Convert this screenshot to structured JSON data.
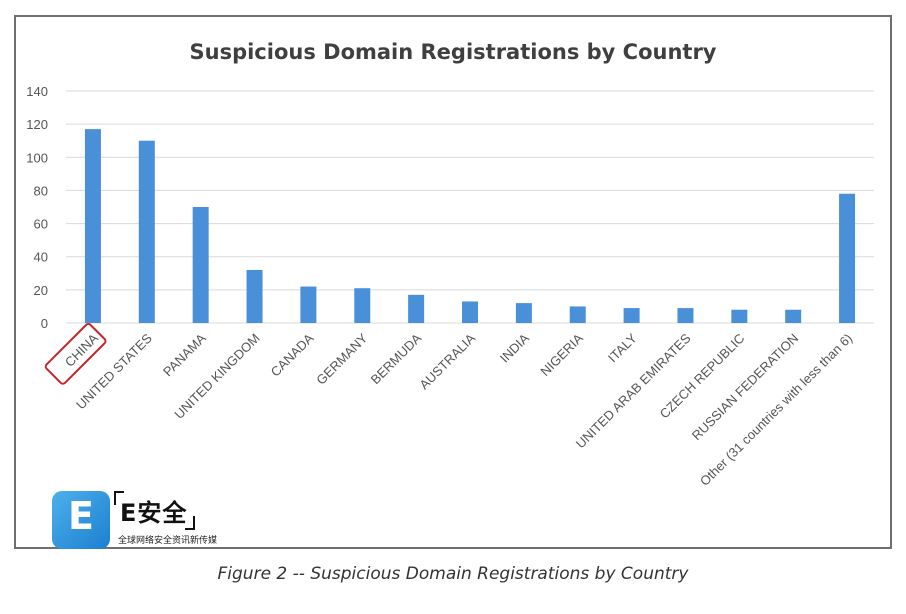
{
  "caption": "Figure 2 -- Suspicious Domain Registrations by Country",
  "logo": {
    "icon": "e-letter-icon",
    "brand": "E安全",
    "tagline": "全球网络安全资讯新传媒"
  },
  "chart_data": {
    "type": "bar",
    "title": "Suspicious Domain Registrations by Country",
    "xlabel": "",
    "ylabel": "",
    "ylim": [
      0,
      140
    ],
    "yticks": [
      0,
      20,
      40,
      60,
      80,
      100,
      120,
      140
    ],
    "grid": true,
    "bar_color": "#4a90d9",
    "highlight_color": "#c0282d",
    "highlight_category": "CHINA",
    "categories": [
      "CHINA",
      "UNITED STATES",
      "PANAMA",
      "UNITED KINGDOM",
      "CANADA",
      "GERMANY",
      "BERMUDA",
      "AUSTRALIA",
      "INDIA",
      "NIGERIA",
      "ITALY",
      "UNITED ARAB EMIRATES",
      "CZECH REPUBLIC",
      "RUSSIAN FEDERATION",
      "Other (31 countries with less than 6)"
    ],
    "values": [
      117,
      110,
      70,
      32,
      22,
      21,
      17,
      13,
      12,
      10,
      9,
      9,
      8,
      8,
      78
    ]
  }
}
